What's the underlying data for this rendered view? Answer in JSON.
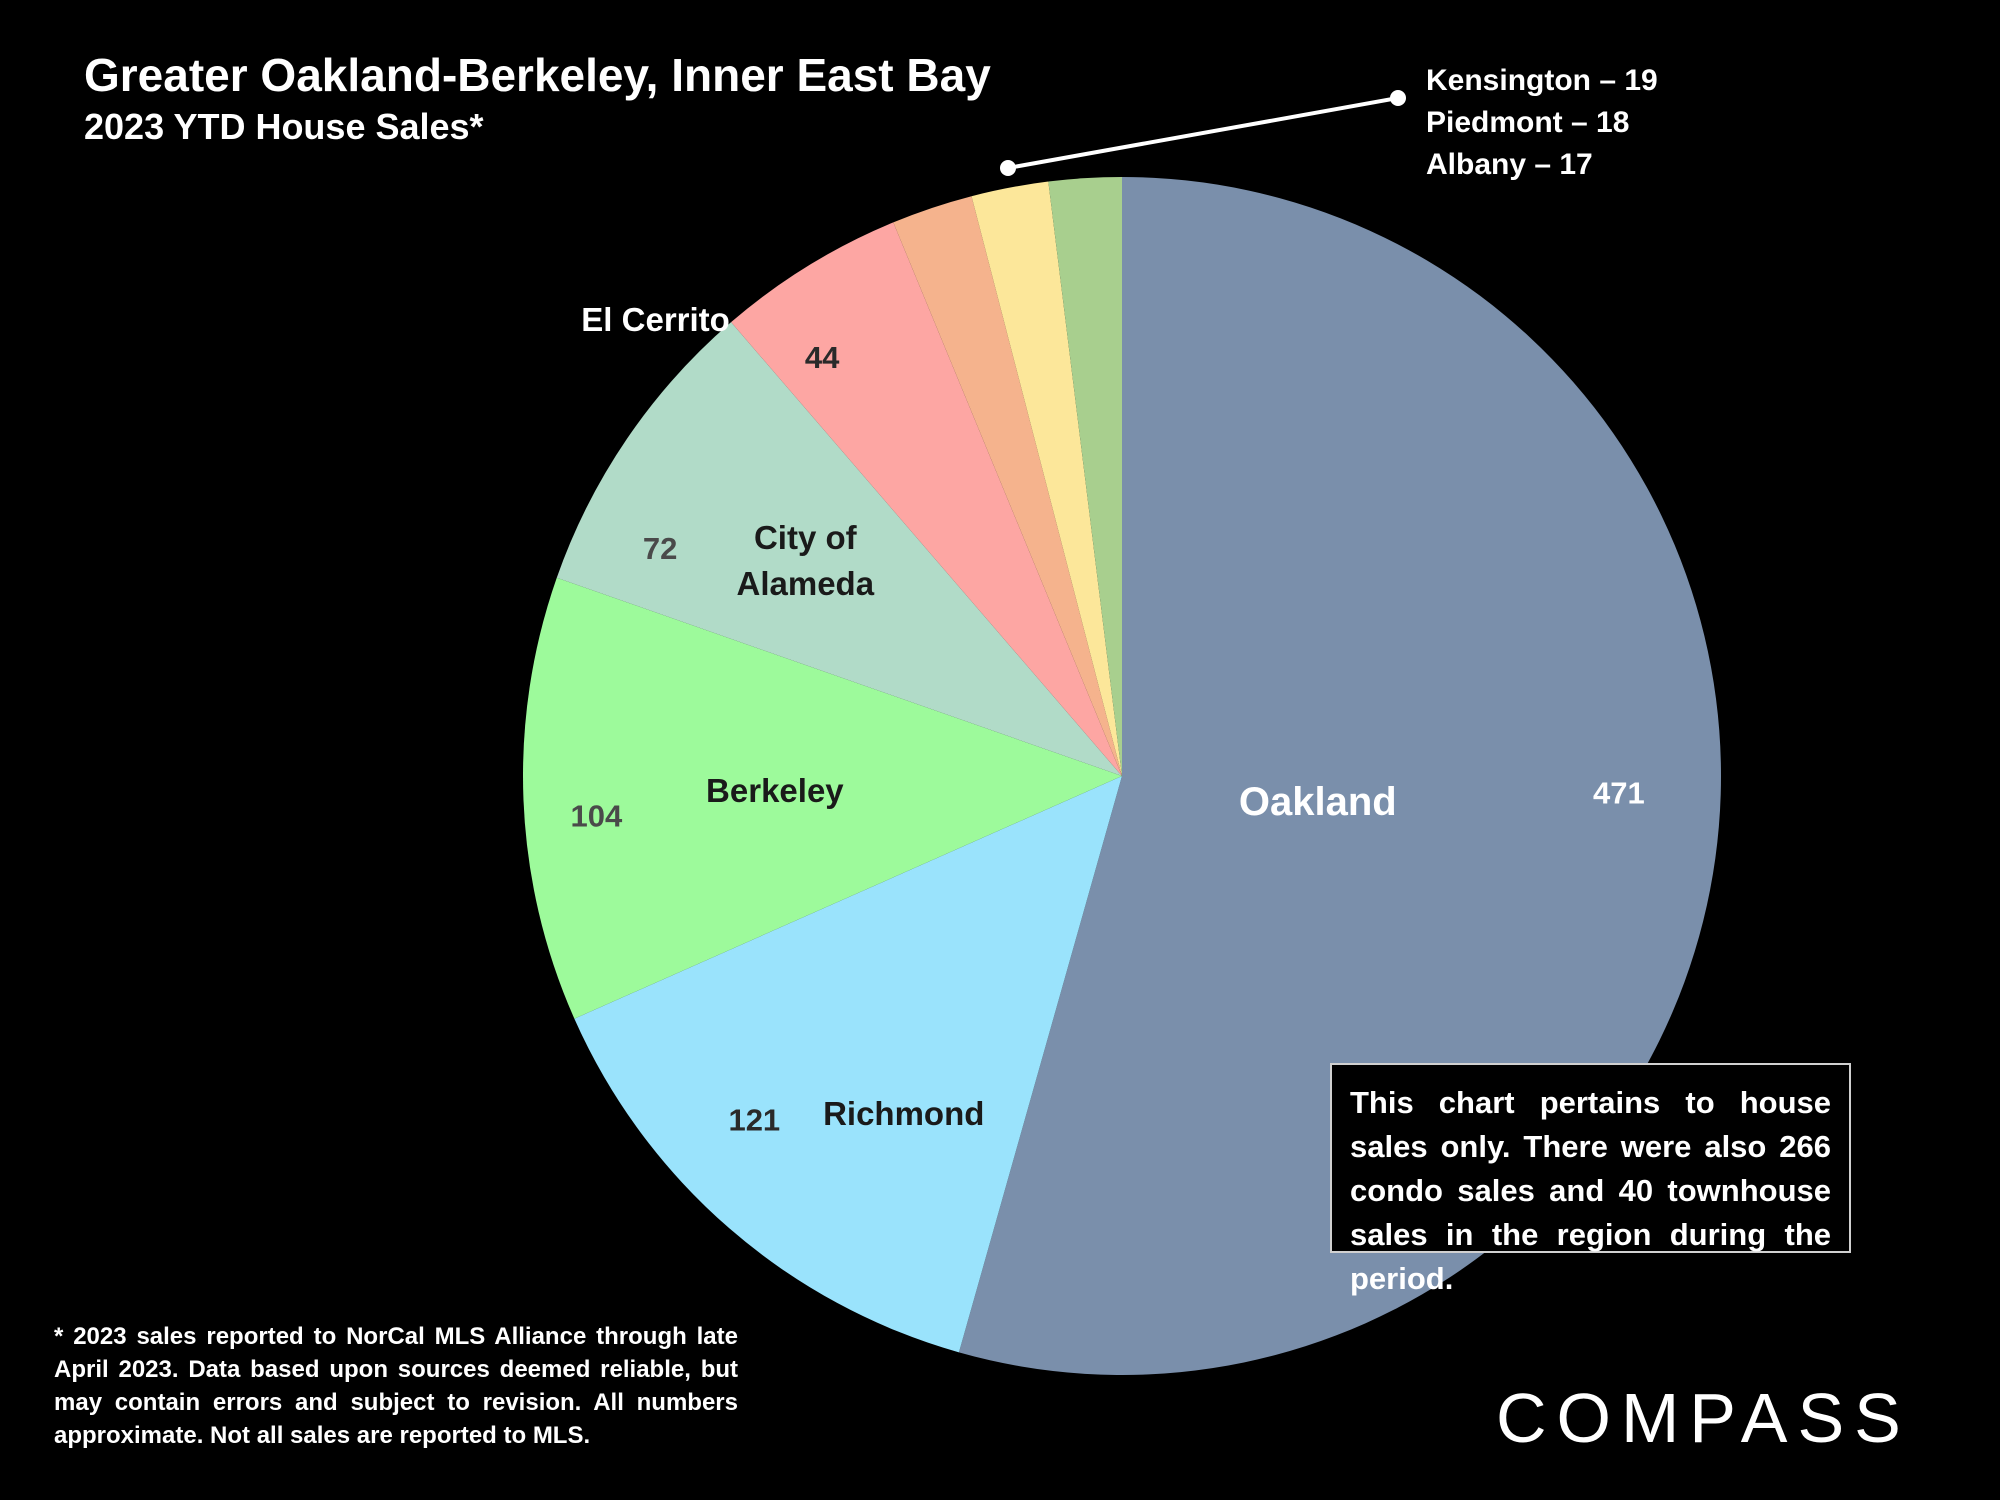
{
  "header": {
    "title": "Greater Oakland-Berkeley, Inner East Bay",
    "subtitle": "2023 YTD House Sales*"
  },
  "chart_data": {
    "type": "pie",
    "title": "Greater Oakland-Berkeley, Inner East Bay",
    "subtitle": "2023 YTD House Sales*",
    "slices": [
      {
        "name": "Oakland",
        "value": 471,
        "color": "#7a8fab",
        "name_label": "Oakland",
        "value_label": "471",
        "text_color": "#ffffff"
      },
      {
        "name": "Richmond",
        "value": 121,
        "color": "#9ae3fc",
        "name_label": "Richmond",
        "value_label": "121",
        "text_color": "#1a1a1a"
      },
      {
        "name": "Berkeley",
        "value": 104,
        "color": "#9dfa9b",
        "name_label": "Berkeley",
        "value_label": "104",
        "text_color": "#1a1a1a"
      },
      {
        "name": "City of Alameda",
        "value": 72,
        "color": "#b1dbc8",
        "name_label": "City of|Alameda",
        "value_label": "72",
        "text_color": "#1a1a1a"
      },
      {
        "name": "El Cerrito",
        "value": 44,
        "color": "#fda6a3",
        "name_label": "El Cerrito",
        "value_label": "44",
        "text_color": "#1a1a1a"
      },
      {
        "name": "Kensington",
        "value": 19,
        "color": "#f5b38d",
        "name_label": "",
        "value_label": "",
        "text_color": "#1a1a1a"
      },
      {
        "name": "Piedmont",
        "value": 18,
        "color": "#fce79a",
        "name_label": "",
        "value_label": "",
        "text_color": "#1a1a1a"
      },
      {
        "name": "Albany",
        "value": 17,
        "color": "#a8cf8e",
        "name_label": "",
        "value_label": "",
        "text_color": "#1a1a1a"
      }
    ],
    "start_angle": "12 o'clock",
    "direction": "clockwise"
  },
  "callout": {
    "lines": [
      "Kensington – 19",
      "Piedmont – 18",
      "Albany – 17"
    ]
  },
  "note": "This chart pertains to house sales only. There were also 266 condo sales and 40 townhouse sales in the region during the period.",
  "footnote": "* 2023 sales reported to NorCal MLS Alliance through late April 2023. Data based upon sources deemed reliable, but may contain errors and subject to revision. All numbers approximate. Not all sales are reported to MLS.",
  "logo": {
    "text": "COMPASS"
  }
}
